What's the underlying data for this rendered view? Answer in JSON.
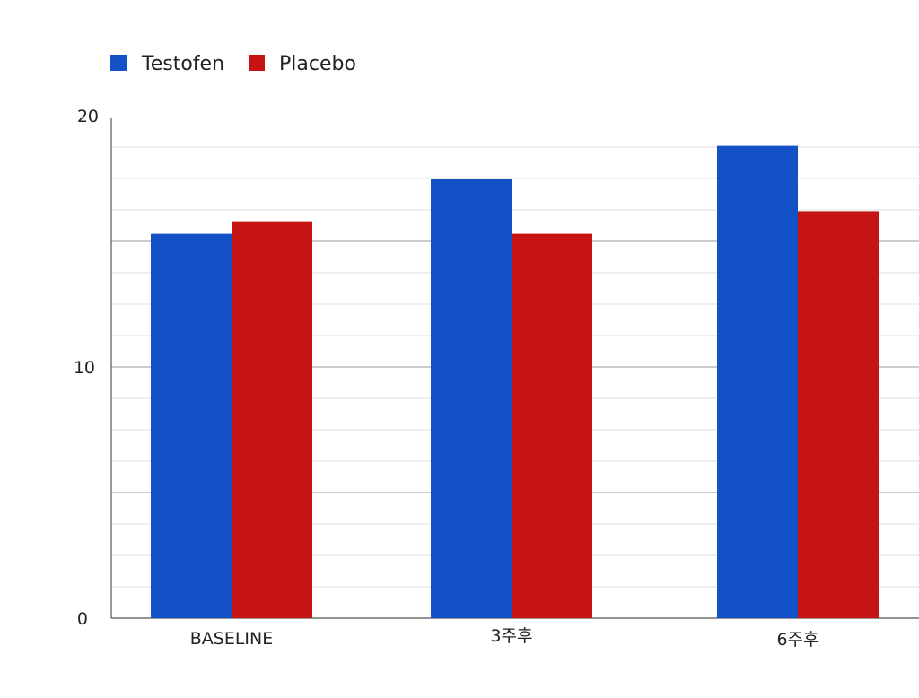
{
  "chart_data": {
    "type": "bar",
    "categories": [
      "BASELINE",
      "3주후",
      "6주후"
    ],
    "series": [
      {
        "name": "Testofen",
        "values": [
          15.3,
          17.5,
          18.8
        ]
      },
      {
        "name": "Placebo",
        "values": [
          15.8,
          15.3,
          16.2
        ]
      }
    ],
    "ylim": [
      0,
      20
    ],
    "yticks": [
      "0",
      "10",
      "20"
    ],
    "grid": true,
    "legend": "top-left"
  },
  "colors": {
    "Testofen": "#1352c6",
    "Placebo": "#c61414"
  }
}
